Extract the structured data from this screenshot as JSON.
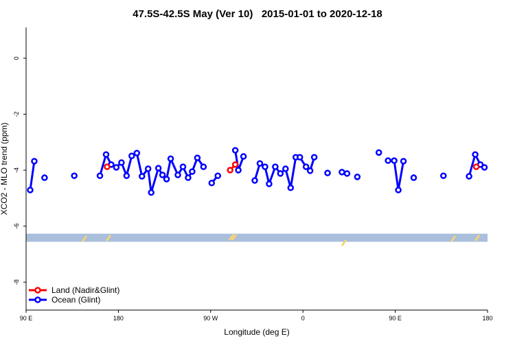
{
  "chart_data": {
    "type": "line",
    "title": "47.5S-42.5S May (Ver 10)   2015-01-01 to 2020-12-18",
    "x_label": "Longitude (deg E)",
    "y_label": "XCO2 - MLO trend (ppm)",
    "xlim": [
      90,
      540
    ],
    "ylim": [
      -9,
      1.1
    ],
    "xticks": [
      {
        "value": 90,
        "label": "90 E"
      },
      180,
      {
        "value": 270,
        "label": "90 W"
      },
      {
        "value": 360,
        "label": "0"
      },
      {
        "value": 450,
        "label": "90 E"
      },
      {
        "value": 540,
        "label": "180"
      }
    ],
    "yticks": [
      0,
      -2,
      -4,
      -6,
      -8
    ],
    "band": {
      "range": [
        -6.56,
        -6.27
      ],
      "color": "#a9bfdb"
    },
    "legend": "bottom-left",
    "series": [
      {
        "name": "Land (Nadir&Glint)",
        "color": "#ff0000",
        "x": [
          169,
          null,
          289,
          294,
          null,
          529
        ],
        "values": [
          -3.88,
          null,
          -4.0,
          -3.8,
          null,
          -3.88
        ]
      },
      {
        "name": "Ocean (Glint)",
        "color": "#0000ff",
        "x": [
          94,
          98,
          null,
          108,
          null,
          137,
          null,
          162,
          168,
          173,
          178,
          183,
          188,
          193,
          198,
          203,
          209,
          212,
          219,
          223,
          227,
          231,
          238,
          243,
          248,
          252,
          257,
          263,
          null,
          271,
          277,
          null,
          294,
          297,
          302,
          null,
          313,
          318,
          323,
          327,
          333,
          338,
          343,
          348,
          353,
          357,
          363,
          367,
          371,
          null,
          384,
          null,
          398,
          403,
          null,
          413,
          null,
          434,
          null,
          443,
          449,
          453,
          458,
          null,
          468,
          null,
          497,
          null,
          522,
          528,
          533,
          537
        ],
        "values": [
          -4.71,
          -3.68,
          null,
          -4.27,
          null,
          -4.2,
          null,
          -4.2,
          -3.44,
          -3.8,
          -3.9,
          -3.73,
          -4.2,
          -3.49,
          -3.39,
          -4.22,
          -3.95,
          -4.8,
          -3.93,
          -4.17,
          -4.32,
          -3.59,
          -4.17,
          -3.88,
          -4.27,
          -4.05,
          -3.56,
          -3.88,
          null,
          -4.46,
          -4.2,
          null,
          -3.29,
          -4.0,
          -3.51,
          null,
          -4.37,
          -3.76,
          -3.88,
          -4.49,
          -3.88,
          -4.12,
          -3.95,
          -4.63,
          -3.54,
          -3.54,
          -3.88,
          -4.02,
          -3.54,
          null,
          -4.1,
          null,
          -4.07,
          -4.12,
          null,
          -4.24,
          null,
          -3.37,
          null,
          -3.66,
          -3.66,
          -4.71,
          -3.68,
          null,
          -4.27,
          null,
          -4.2,
          null,
          -4.22,
          -3.44,
          -3.8,
          -3.9
        ]
      }
    ]
  }
}
